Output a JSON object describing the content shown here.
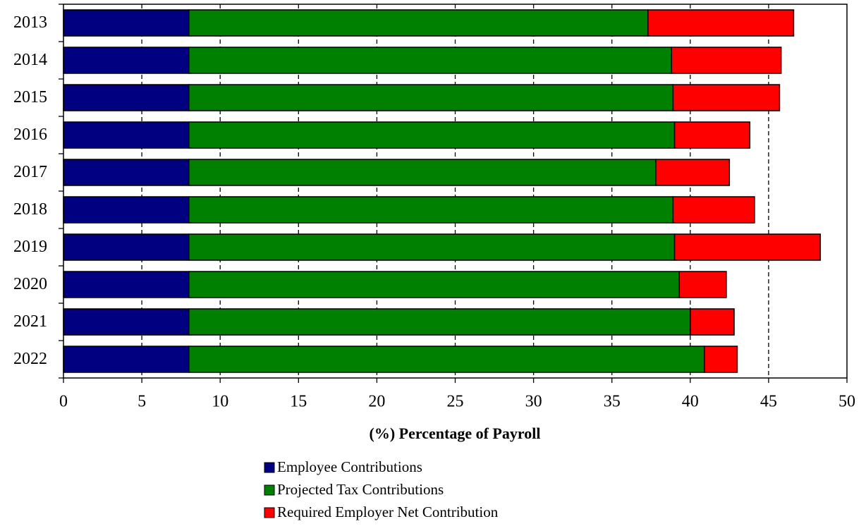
{
  "chart_data": {
    "type": "stacked_barh",
    "categories": [
      "2013",
      "2014",
      "2015",
      "2016",
      "2017",
      "2018",
      "2019",
      "2020",
      "2021",
      "2022"
    ],
    "series": [
      {
        "name": "Employee Contributions",
        "color": "#000080",
        "values": [
          8,
          8,
          8,
          8,
          8,
          8,
          8,
          8,
          8,
          8
        ]
      },
      {
        "name": "Projected Tax Contributions",
        "color": "#008000",
        "values": [
          29.3,
          30.8,
          30.9,
          31.0,
          29.8,
          30.9,
          31.0,
          31.3,
          32.0,
          32.9
        ]
      },
      {
        "name": "Required Employer Net Contribution",
        "color": "#ff0000",
        "values": [
          9.3,
          7.0,
          6.8,
          4.8,
          4.7,
          5.2,
          9.3,
          3.0,
          2.8,
          2.1
        ]
      }
    ],
    "x_label": "(%) Percentage of Payroll",
    "xlim": [
      0,
      50
    ],
    "xticks": [
      0,
      5,
      10,
      15,
      20,
      25,
      30,
      35,
      40,
      45,
      50
    ],
    "grid": true,
    "legend": "bottom"
  }
}
